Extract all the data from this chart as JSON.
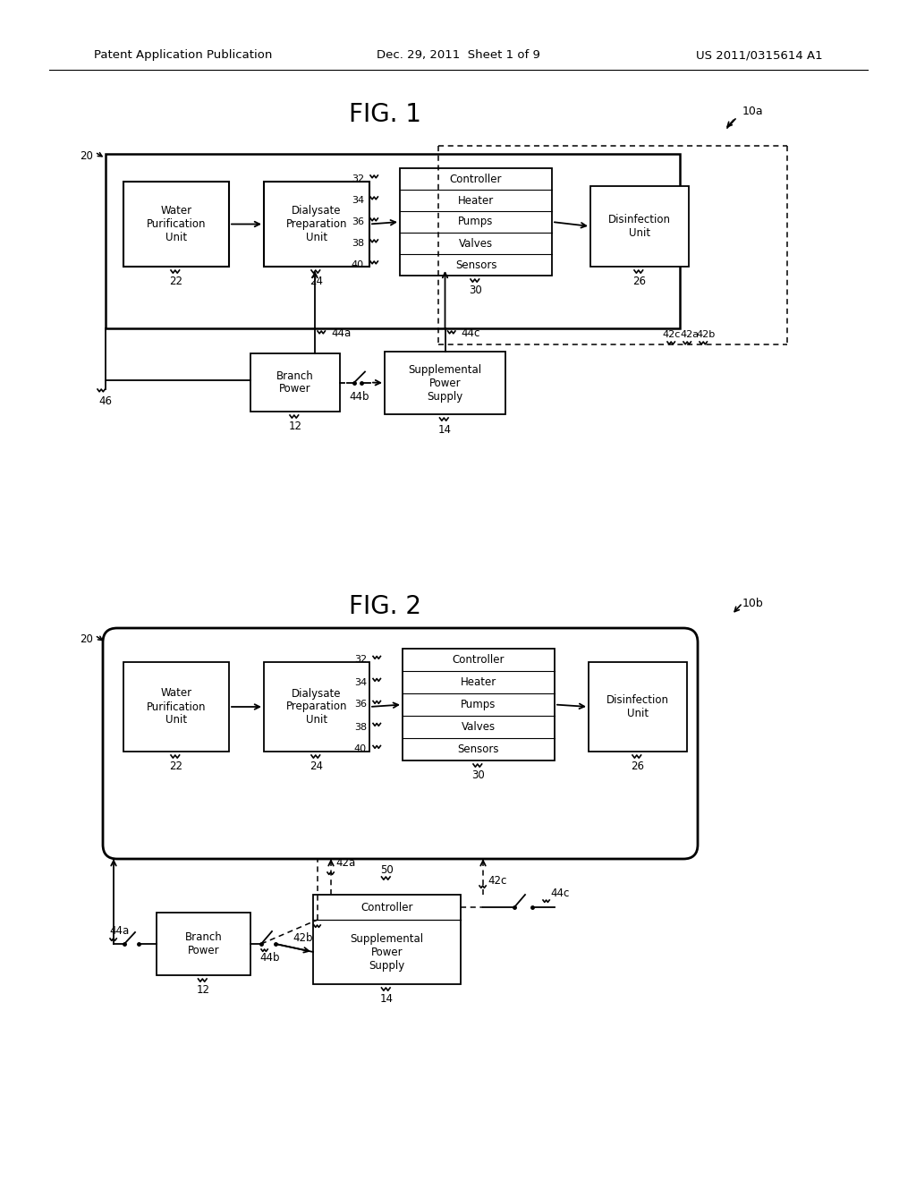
{
  "bg_color": "#ffffff",
  "header_left": "Patent Application Publication",
  "header_mid": "Dec. 29, 2011  Sheet 1 of 9",
  "header_right": "US 2011/0315614 A1"
}
